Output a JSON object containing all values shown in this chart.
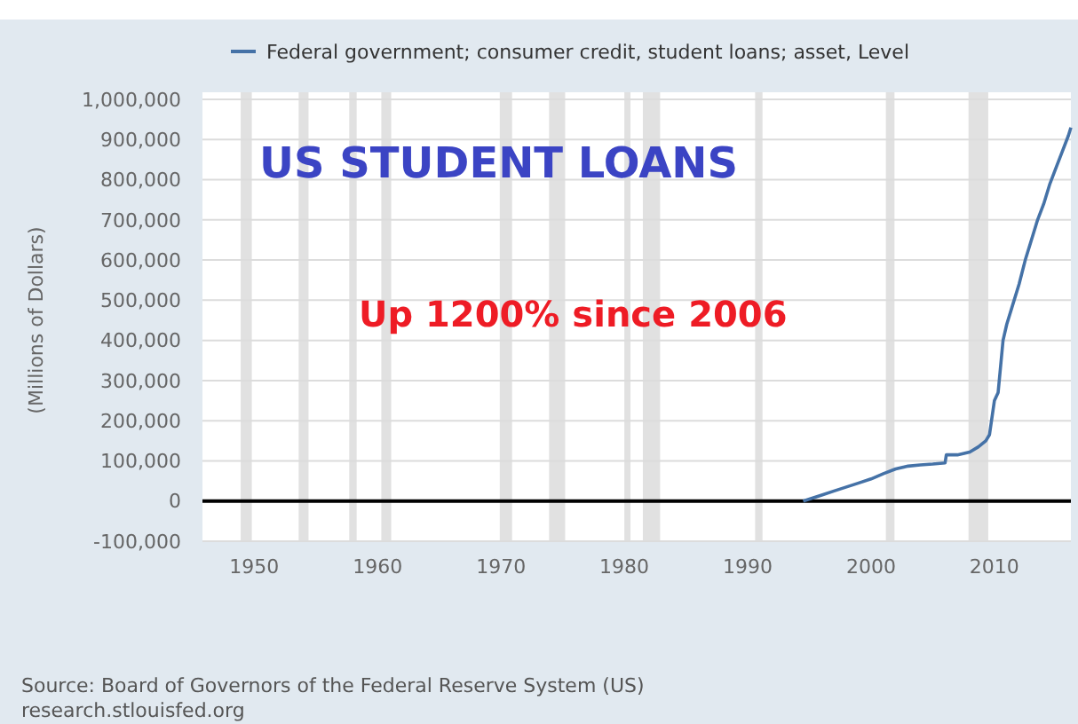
{
  "chart_data": {
    "type": "line",
    "title": "US STUDENT LOANS",
    "subtitle": "Up 1200% since 2006",
    "ylabel": "(Millions of Dollars)",
    "annotations": [
      "Source: Board of Governors of the Federal Reserve System (US)",
      "research.stlouisfed.org"
    ],
    "series": [
      {
        "name": "Federal government; consumer credit, student loans; asset, Level",
        "color": "#4572a7",
        "x": [
          1994.5,
          1995,
          1996,
          1997,
          1998,
          1999,
          2000,
          2001,
          2002,
          2003,
          2004,
          2005,
          2006,
          2006.1,
          2007,
          2008,
          2008.7,
          2009.3,
          2009.6,
          2010,
          2010.3,
          2010.7,
          2011,
          2011.5,
          2012,
          2012.5,
          2013,
          2013.5,
          2014,
          2014.5,
          2015,
          2015.5,
          2016,
          2016.2
        ],
        "values": [
          0,
          5000,
          15000,
          25000,
          35000,
          45000,
          55000,
          68000,
          80000,
          87000,
          90000,
          92000,
          95000,
          115000,
          115000,
          122000,
          135000,
          150000,
          165000,
          250000,
          270000,
          400000,
          440000,
          490000,
          540000,
          600000,
          650000,
          700000,
          740000,
          790000,
          830000,
          870000,
          910000,
          930000
        ]
      }
    ],
    "xlim": [
      1945.8,
      2016.2
    ],
    "xticks": [
      1950,
      1960,
      1970,
      1980,
      1990,
      2000,
      2010
    ],
    "ylim": [
      -100000,
      1000000
    ],
    "yticks": [
      {
        "value": -100000,
        "label": "-100,000"
      },
      {
        "value": 0,
        "label": "0"
      },
      {
        "value": 100000,
        "label": "100,000"
      },
      {
        "value": 200000,
        "label": "200,000"
      },
      {
        "value": 300000,
        "label": "300,000"
      },
      {
        "value": 400000,
        "label": "400,000"
      },
      {
        "value": 500000,
        "label": "500,000"
      },
      {
        "value": 600000,
        "label": "600,000"
      },
      {
        "value": 700000,
        "label": "700,000"
      },
      {
        "value": 800000,
        "label": "800,000"
      },
      {
        "value": 900000,
        "label": "900,000"
      },
      {
        "value": 1000000,
        "label": "1,000,000"
      }
    ],
    "grid": "y",
    "legend": "top",
    "marker": "none",
    "line_style": "solid",
    "ref_lines": [
      {
        "axis": "y",
        "value": 0,
        "color": "#000000"
      }
    ],
    "bands": [
      {
        "axis": "x",
        "from": 1948.9,
        "to": 1949.8,
        "color": "#e1e1e1"
      },
      {
        "axis": "x",
        "from": 1953.6,
        "to": 1954.4,
        "color": "#e1e1e1"
      },
      {
        "axis": "x",
        "from": 1957.7,
        "to": 1958.3,
        "color": "#e1e1e1"
      },
      {
        "axis": "x",
        "from": 1960.3,
        "to": 1961.1,
        "color": "#e1e1e1"
      },
      {
        "axis": "x",
        "from": 1969.9,
        "to": 1970.9,
        "color": "#e1e1e1"
      },
      {
        "axis": "x",
        "from": 1973.9,
        "to": 1975.2,
        "color": "#e1e1e1"
      },
      {
        "axis": "x",
        "from": 1980.0,
        "to": 1980.5,
        "color": "#e1e1e1"
      },
      {
        "axis": "x",
        "from": 1981.5,
        "to": 1982.9,
        "color": "#e1e1e1"
      },
      {
        "axis": "x",
        "from": 1990.6,
        "to": 1991.2,
        "color": "#e1e1e1"
      },
      {
        "axis": "x",
        "from": 2001.2,
        "to": 2001.9,
        "color": "#e1e1e1"
      },
      {
        "axis": "x",
        "from": 2007.9,
        "to": 2009.5,
        "color": "#e1e1e1"
      }
    ]
  }
}
